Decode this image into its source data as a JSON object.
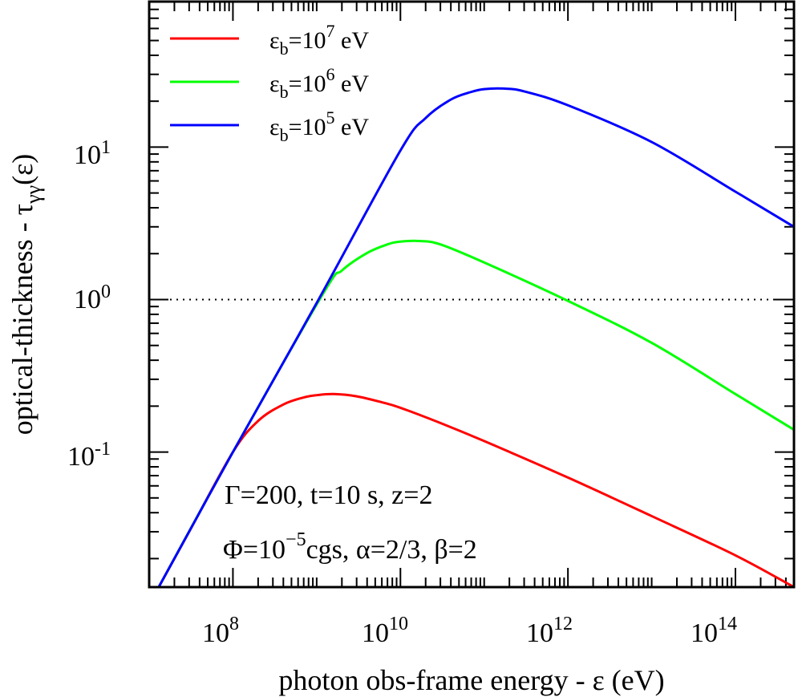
{
  "chart_data": {
    "type": "line",
    "xscale": "log",
    "yscale": "log",
    "xlim": [
      10000000.0,
      500000000000000.0
    ],
    "ylim": [
      0.013,
      90
    ],
    "xlabel": "photon obs-frame energy - ε (eV)",
    "ylabel": {
      "base": "optical-thickness - τ",
      "sub": "γγ",
      "suffix": "(ε)"
    },
    "x_ticks": [
      {
        "value": 100000000.0,
        "base": "10",
        "exp": "8"
      },
      {
        "value": 10000000000.0,
        "base": "10",
        "exp": "10"
      },
      {
        "value": 1000000000000.0,
        "base": "10",
        "exp": "12"
      },
      {
        "value": 100000000000000.0,
        "base": "10",
        "exp": "14"
      }
    ],
    "y_ticks": [
      {
        "value": 0.1,
        "base": "10",
        "exp": "-1"
      },
      {
        "value": 1,
        "base": "10",
        "exp": "0"
      },
      {
        "value": 10,
        "base": "10",
        "exp": "1"
      }
    ],
    "reference_line": {
      "y": 1,
      "style": "dotted",
      "color": "#000000"
    },
    "legend": {
      "position": "top-left",
      "entries": [
        {
          "symbol": "ε",
          "sub": "b",
          "mid": "=10",
          "exp": "7",
          "unit": " eV",
          "color": "#ff0000"
        },
        {
          "symbol": "ε",
          "sub": "b",
          "mid": "=10",
          "exp": "6",
          "unit": " eV",
          "color": "#00ff00"
        },
        {
          "symbol": "ε",
          "sub": "b",
          "mid": "=10",
          "exp": "5",
          "unit": " eV",
          "color": "#0000ff"
        }
      ]
    },
    "annotations": [
      {
        "text": "Γ=200, t=10 s, z=2"
      },
      {
        "pre": "Φ=10",
        "exp": "−5",
        "post": "cgs, α=2/3, β=2"
      }
    ],
    "series": [
      {
        "name": "εb=10^7 eV",
        "color": "#ff0000",
        "x": [
          13000000.0,
          30000000.0,
          100000000.0,
          200000000.0,
          400000000.0,
          700000000.0,
          1000000000.0,
          1600000000.0,
          3000000000.0,
          6000000000.0,
          10000000000.0,
          30000000000.0,
          100000000000.0,
          1000000000000.0,
          10000000000000.0,
          100000000000000.0,
          500000000000000.0
        ],
        "y": [
          0.013,
          0.03,
          0.1,
          0.16,
          0.205,
          0.228,
          0.236,
          0.24,
          0.232,
          0.212,
          0.195,
          0.155,
          0.118,
          0.068,
          0.038,
          0.021,
          0.013
        ]
      },
      {
        "name": "εb=10^6 eV",
        "color": "#00ff00",
        "x": [
          13000000.0,
          100000000.0,
          1200000000.0,
          2000000000.0,
          4000000000.0,
          7000000000.0,
          10000000000.0,
          17000000000.0,
          30000000000.0,
          100000000000.0,
          1000000000000.0,
          10000000000000.0,
          100000000000000.0,
          500000000000000.0
        ],
        "y": [
          0.013,
          0.1,
          1.1,
          1.55,
          2.02,
          2.3,
          2.4,
          2.42,
          2.3,
          1.75,
          0.98,
          0.52,
          0.24,
          0.14
        ]
      },
      {
        "name": "εb=10^5 eV",
        "color": "#0000ff",
        "x": [
          13000000.0,
          100000000.0,
          1000000000.0,
          10000000000.0,
          20000000000.0,
          40000000000.0,
          70000000000.0,
          100000000000.0,
          170000000000.0,
          300000000000.0,
          1000000000000.0,
          10000000000000.0,
          100000000000000.0,
          500000000000000.0
        ],
        "y": [
          0.013,
          0.1,
          0.95,
          9.5,
          15.5,
          20.5,
          23.0,
          24.0,
          24.2,
          23.2,
          18.8,
          10.8,
          5.1,
          3.0
        ]
      }
    ]
  }
}
